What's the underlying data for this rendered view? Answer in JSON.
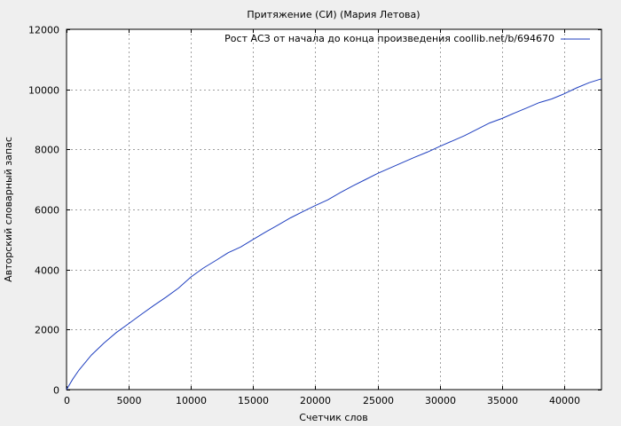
{
  "chart_data": {
    "type": "line",
    "title": "Притяжение (СИ) (Мария Летова)",
    "xlabel": "Счетчик слов",
    "ylabel": "Авторский словарный запас",
    "xlim": [
      0,
      43000
    ],
    "ylim": [
      0,
      12000
    ],
    "xticks": [
      0,
      5000,
      10000,
      15000,
      20000,
      25000,
      30000,
      35000,
      40000
    ],
    "yticks": [
      0,
      2000,
      4000,
      6000,
      8000,
      10000,
      12000
    ],
    "grid": true,
    "legend_position": "top-right",
    "series": [
      {
        "name": "Рост АСЗ от начала до конца произведения coollib.net/b/694670",
        "color": "#1f3fbf",
        "x": [
          0,
          500,
          1000,
          2000,
          3000,
          4000,
          5000,
          6000,
          7000,
          8000,
          9000,
          10000,
          11000,
          12000,
          13000,
          14000,
          15000,
          16000,
          17000,
          18000,
          19000,
          20000,
          21000,
          22000,
          23000,
          24000,
          25000,
          26000,
          27000,
          28000,
          29000,
          30000,
          31000,
          32000,
          33000,
          34000,
          35000,
          36000,
          37000,
          38000,
          39000,
          40000,
          41000,
          42000,
          43000
        ],
        "y": [
          0,
          350,
          650,
          1150,
          1550,
          1900,
          2200,
          2500,
          2800,
          3080,
          3380,
          3750,
          4050,
          4300,
          4560,
          4750,
          5000,
          5250,
          5480,
          5720,
          5930,
          6130,
          6320,
          6560,
          6780,
          6990,
          7200,
          7380,
          7560,
          7740,
          7910,
          8100,
          8280,
          8460,
          8670,
          8880,
          9030,
          9210,
          9380,
          9560,
          9680,
          9850,
          10050,
          10220,
          10350
        ]
      }
    ]
  }
}
